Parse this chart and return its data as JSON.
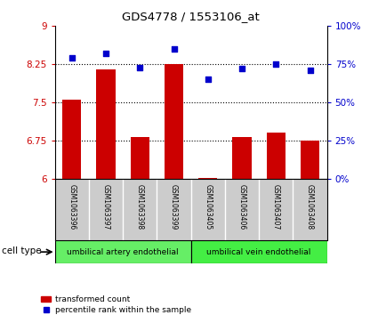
{
  "title": "GDS4778 / 1553106_at",
  "samples": [
    "GSM1063396",
    "GSM1063397",
    "GSM1063398",
    "GSM1063399",
    "GSM1063405",
    "GSM1063406",
    "GSM1063407",
    "GSM1063408"
  ],
  "transformed_count": [
    7.55,
    8.15,
    6.82,
    8.25,
    6.03,
    6.82,
    6.92,
    6.75
  ],
  "percentile_rank": [
    79,
    82,
    73,
    85,
    65,
    72,
    75,
    71
  ],
  "left_ylim": [
    6,
    9
  ],
  "left_yticks": [
    6,
    6.75,
    7.5,
    8.25,
    9
  ],
  "left_yticklabels": [
    "6",
    "6.75",
    "7.5",
    "8.25",
    "9"
  ],
  "right_ylim": [
    0,
    100
  ],
  "right_yticks": [
    0,
    25,
    50,
    75,
    100
  ],
  "right_yticklabels": [
    "0%",
    "25%",
    "50%",
    "75%",
    "100%"
  ],
  "bar_color": "#cc0000",
  "dot_color": "#0000cc",
  "bar_bottom": 6.0,
  "cell_type_groups": [
    {
      "label": "umbilical artery endothelial",
      "indices": [
        0,
        1,
        2,
        3
      ],
      "color": "#66ee66"
    },
    {
      "label": "umbilical vein endothelial",
      "indices": [
        4,
        5,
        6,
        7
      ],
      "color": "#44ee44"
    }
  ],
  "cell_type_label": "cell type",
  "legend_transformed": "transformed count",
  "legend_percentile": "percentile rank within the sample",
  "background_color": "#cccccc",
  "plot_bg": "#ffffff"
}
